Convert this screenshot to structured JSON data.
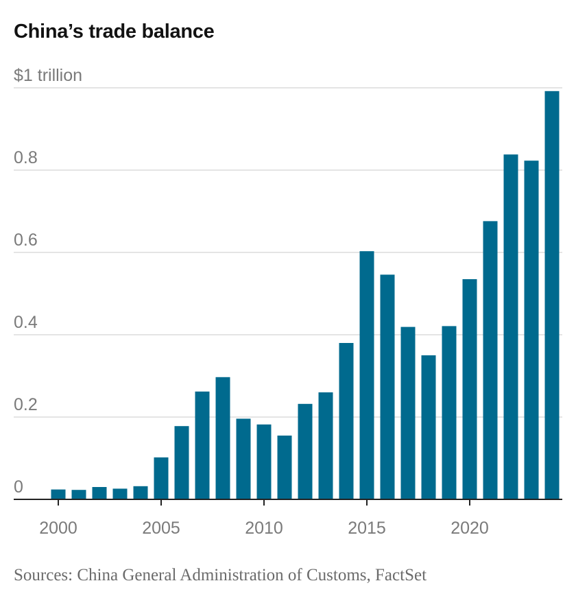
{
  "title": "China’s trade balance",
  "source": "Sources: China General Administration of Customs, FactSet",
  "colors": {
    "bar": "#006a8e",
    "grid": "#dcdcdc",
    "axis": "#222222",
    "tick_text": "#7a7a7a"
  },
  "chart_data": {
    "type": "bar",
    "title": "China’s trade balance",
    "ylabel": "",
    "xlabel": "",
    "ylim": [
      0,
      1.0
    ],
    "grid": true,
    "y_ticks": [
      {
        "value": 0,
        "label": "0"
      },
      {
        "value": 0.2,
        "label": "0.2"
      },
      {
        "value": 0.4,
        "label": "0.4"
      },
      {
        "value": 0.6,
        "label": "0.6"
      },
      {
        "value": 0.8,
        "label": "0.8"
      },
      {
        "value": 1.0,
        "label": "$1 trillion"
      }
    ],
    "x_ticks": [
      {
        "value": 2000,
        "label": "2000"
      },
      {
        "value": 2005,
        "label": "2005"
      },
      {
        "value": 2010,
        "label": "2010"
      },
      {
        "value": 2015,
        "label": "2015"
      },
      {
        "value": 2020,
        "label": "2020"
      }
    ],
    "categories": [
      2000,
      2001,
      2002,
      2003,
      2004,
      2005,
      2006,
      2007,
      2008,
      2009,
      2010,
      2011,
      2012,
      2013,
      2014,
      2015,
      2016,
      2017,
      2018,
      2019,
      2020,
      2021,
      2022,
      2023,
      2024
    ],
    "values": [
      0.024,
      0.023,
      0.03,
      0.026,
      0.032,
      0.102,
      0.178,
      0.262,
      0.297,
      0.196,
      0.182,
      0.155,
      0.232,
      0.26,
      0.38,
      0.603,
      0.546,
      0.419,
      0.35,
      0.421,
      0.535,
      0.676,
      0.838,
      0.823,
      0.992
    ]
  }
}
